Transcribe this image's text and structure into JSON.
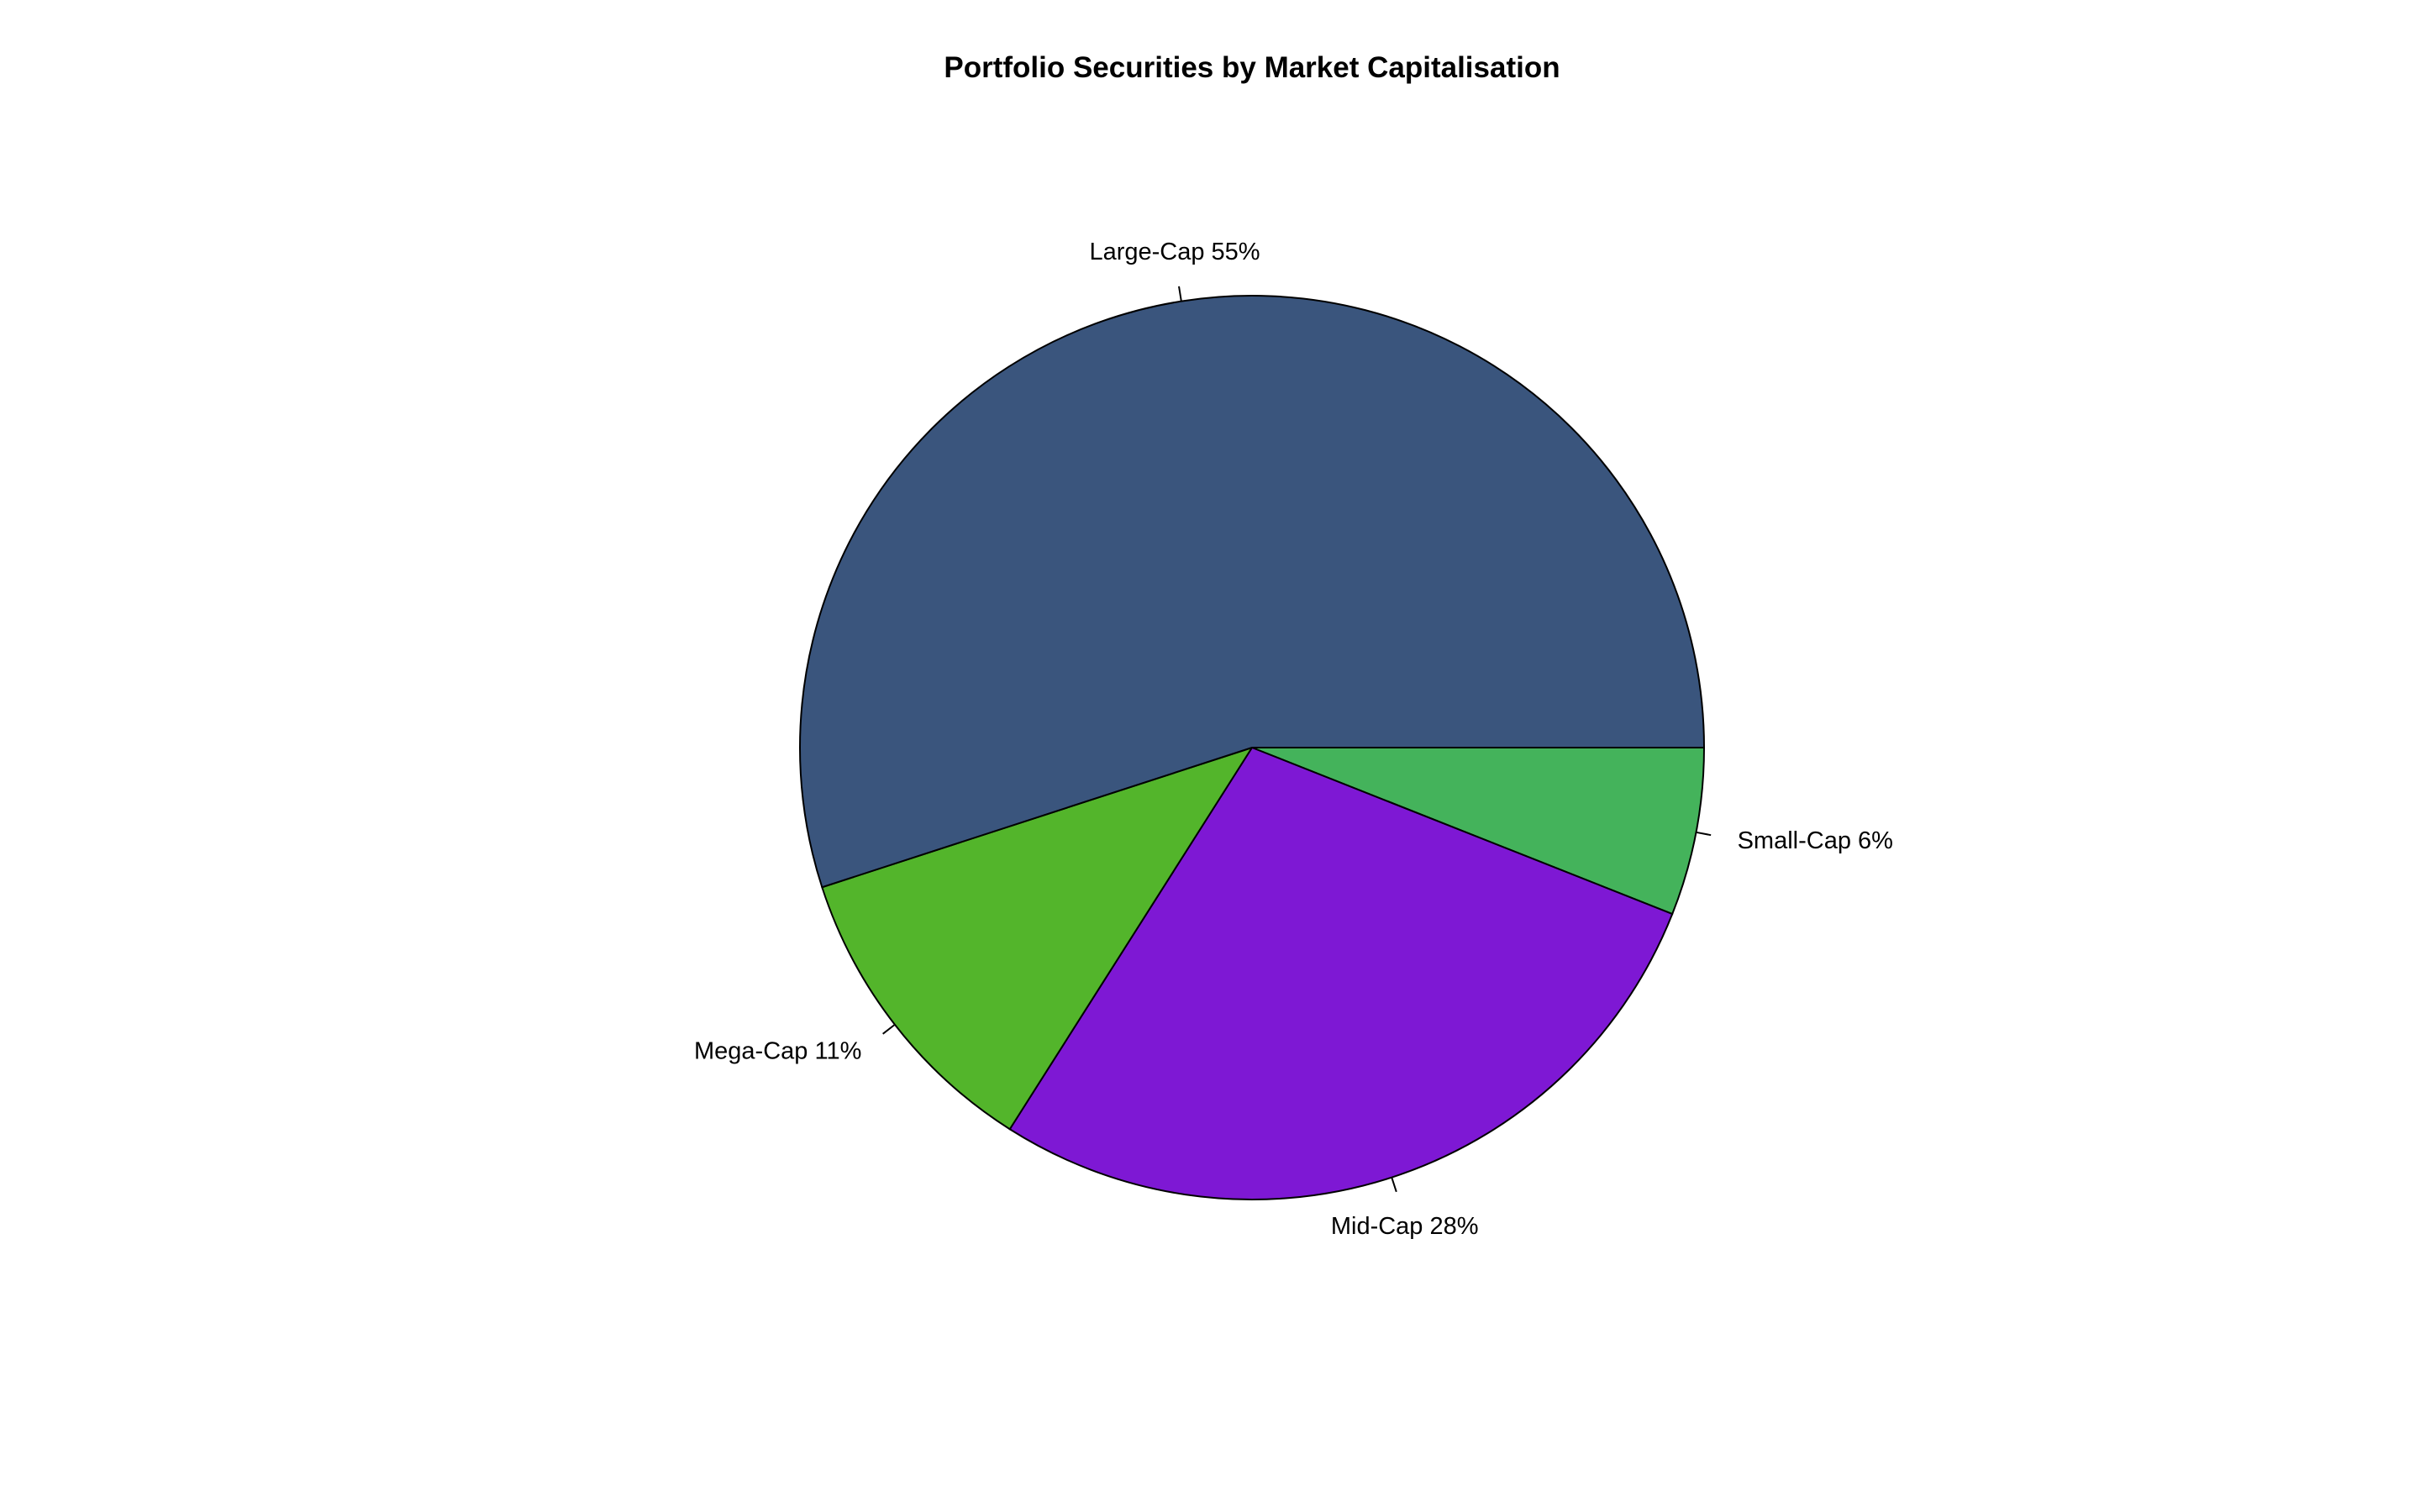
{
  "chart_data": {
    "type": "pie",
    "title": "Portfolio Securities by Market Capitalisation",
    "start_angle_deg": 0,
    "direction": "clockwise",
    "slices": [
      {
        "category": "Small-Cap",
        "value": 6,
        "label": "Small-Cap 6%",
        "color": "#44B35B"
      },
      {
        "category": "Mid-Cap",
        "value": 28,
        "label": "Mid-Cap 28%",
        "color": "#7E18D4"
      },
      {
        "category": "Mega-Cap",
        "value": 11,
        "label": "Mega-Cap 11%",
        "color": "#53B52B"
      },
      {
        "category": "Large-Cap",
        "value": 55,
        "label": "Large-Cap 55%",
        "color": "#3A557D"
      }
    ]
  }
}
